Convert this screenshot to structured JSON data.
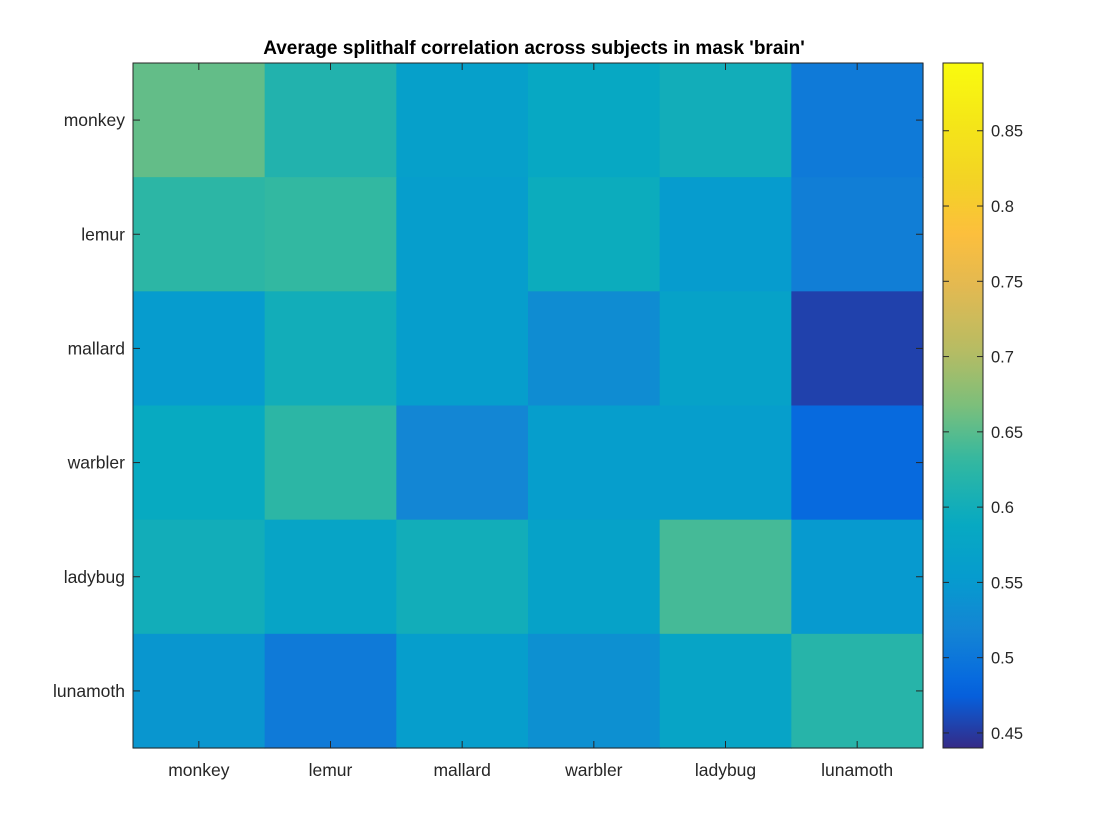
{
  "chart_data": {
    "type": "heatmap",
    "title": "Average splithalf correlation across subjects in mask 'brain'",
    "x_categories": [
      "monkey",
      "lemur",
      "mallard",
      "warbler",
      "ladybug",
      "lunamoth"
    ],
    "y_categories": [
      "monkey",
      "lemur",
      "mallard",
      "warbler",
      "ladybug",
      "lunamoth"
    ],
    "values": [
      [
        0.655,
        0.615,
        0.565,
        0.585,
        0.6,
        0.505
      ],
      [
        0.625,
        0.63,
        0.56,
        0.595,
        0.555,
        0.51
      ],
      [
        0.555,
        0.6,
        0.56,
        0.53,
        0.57,
        0.455
      ],
      [
        0.59,
        0.625,
        0.52,
        0.56,
        0.56,
        0.485
      ],
      [
        0.6,
        0.575,
        0.6,
        0.57,
        0.64,
        0.55
      ],
      [
        0.545,
        0.505,
        0.56,
        0.535,
        0.575,
        0.62
      ]
    ],
    "colorbar": {
      "colormap": "parula",
      "range": [
        0.44,
        0.895
      ],
      "ticks": [
        0.45,
        0.5,
        0.55,
        0.6,
        0.65,
        0.7,
        0.75,
        0.8,
        0.85
      ],
      "tick_labels": [
        "0.45",
        "0.5",
        "0.55",
        "0.6",
        "0.65",
        "0.7",
        "0.75",
        "0.8",
        "0.85"
      ]
    },
    "xlabel": "",
    "ylabel": "",
    "grid": false,
    "colorbar_location": "right"
  }
}
